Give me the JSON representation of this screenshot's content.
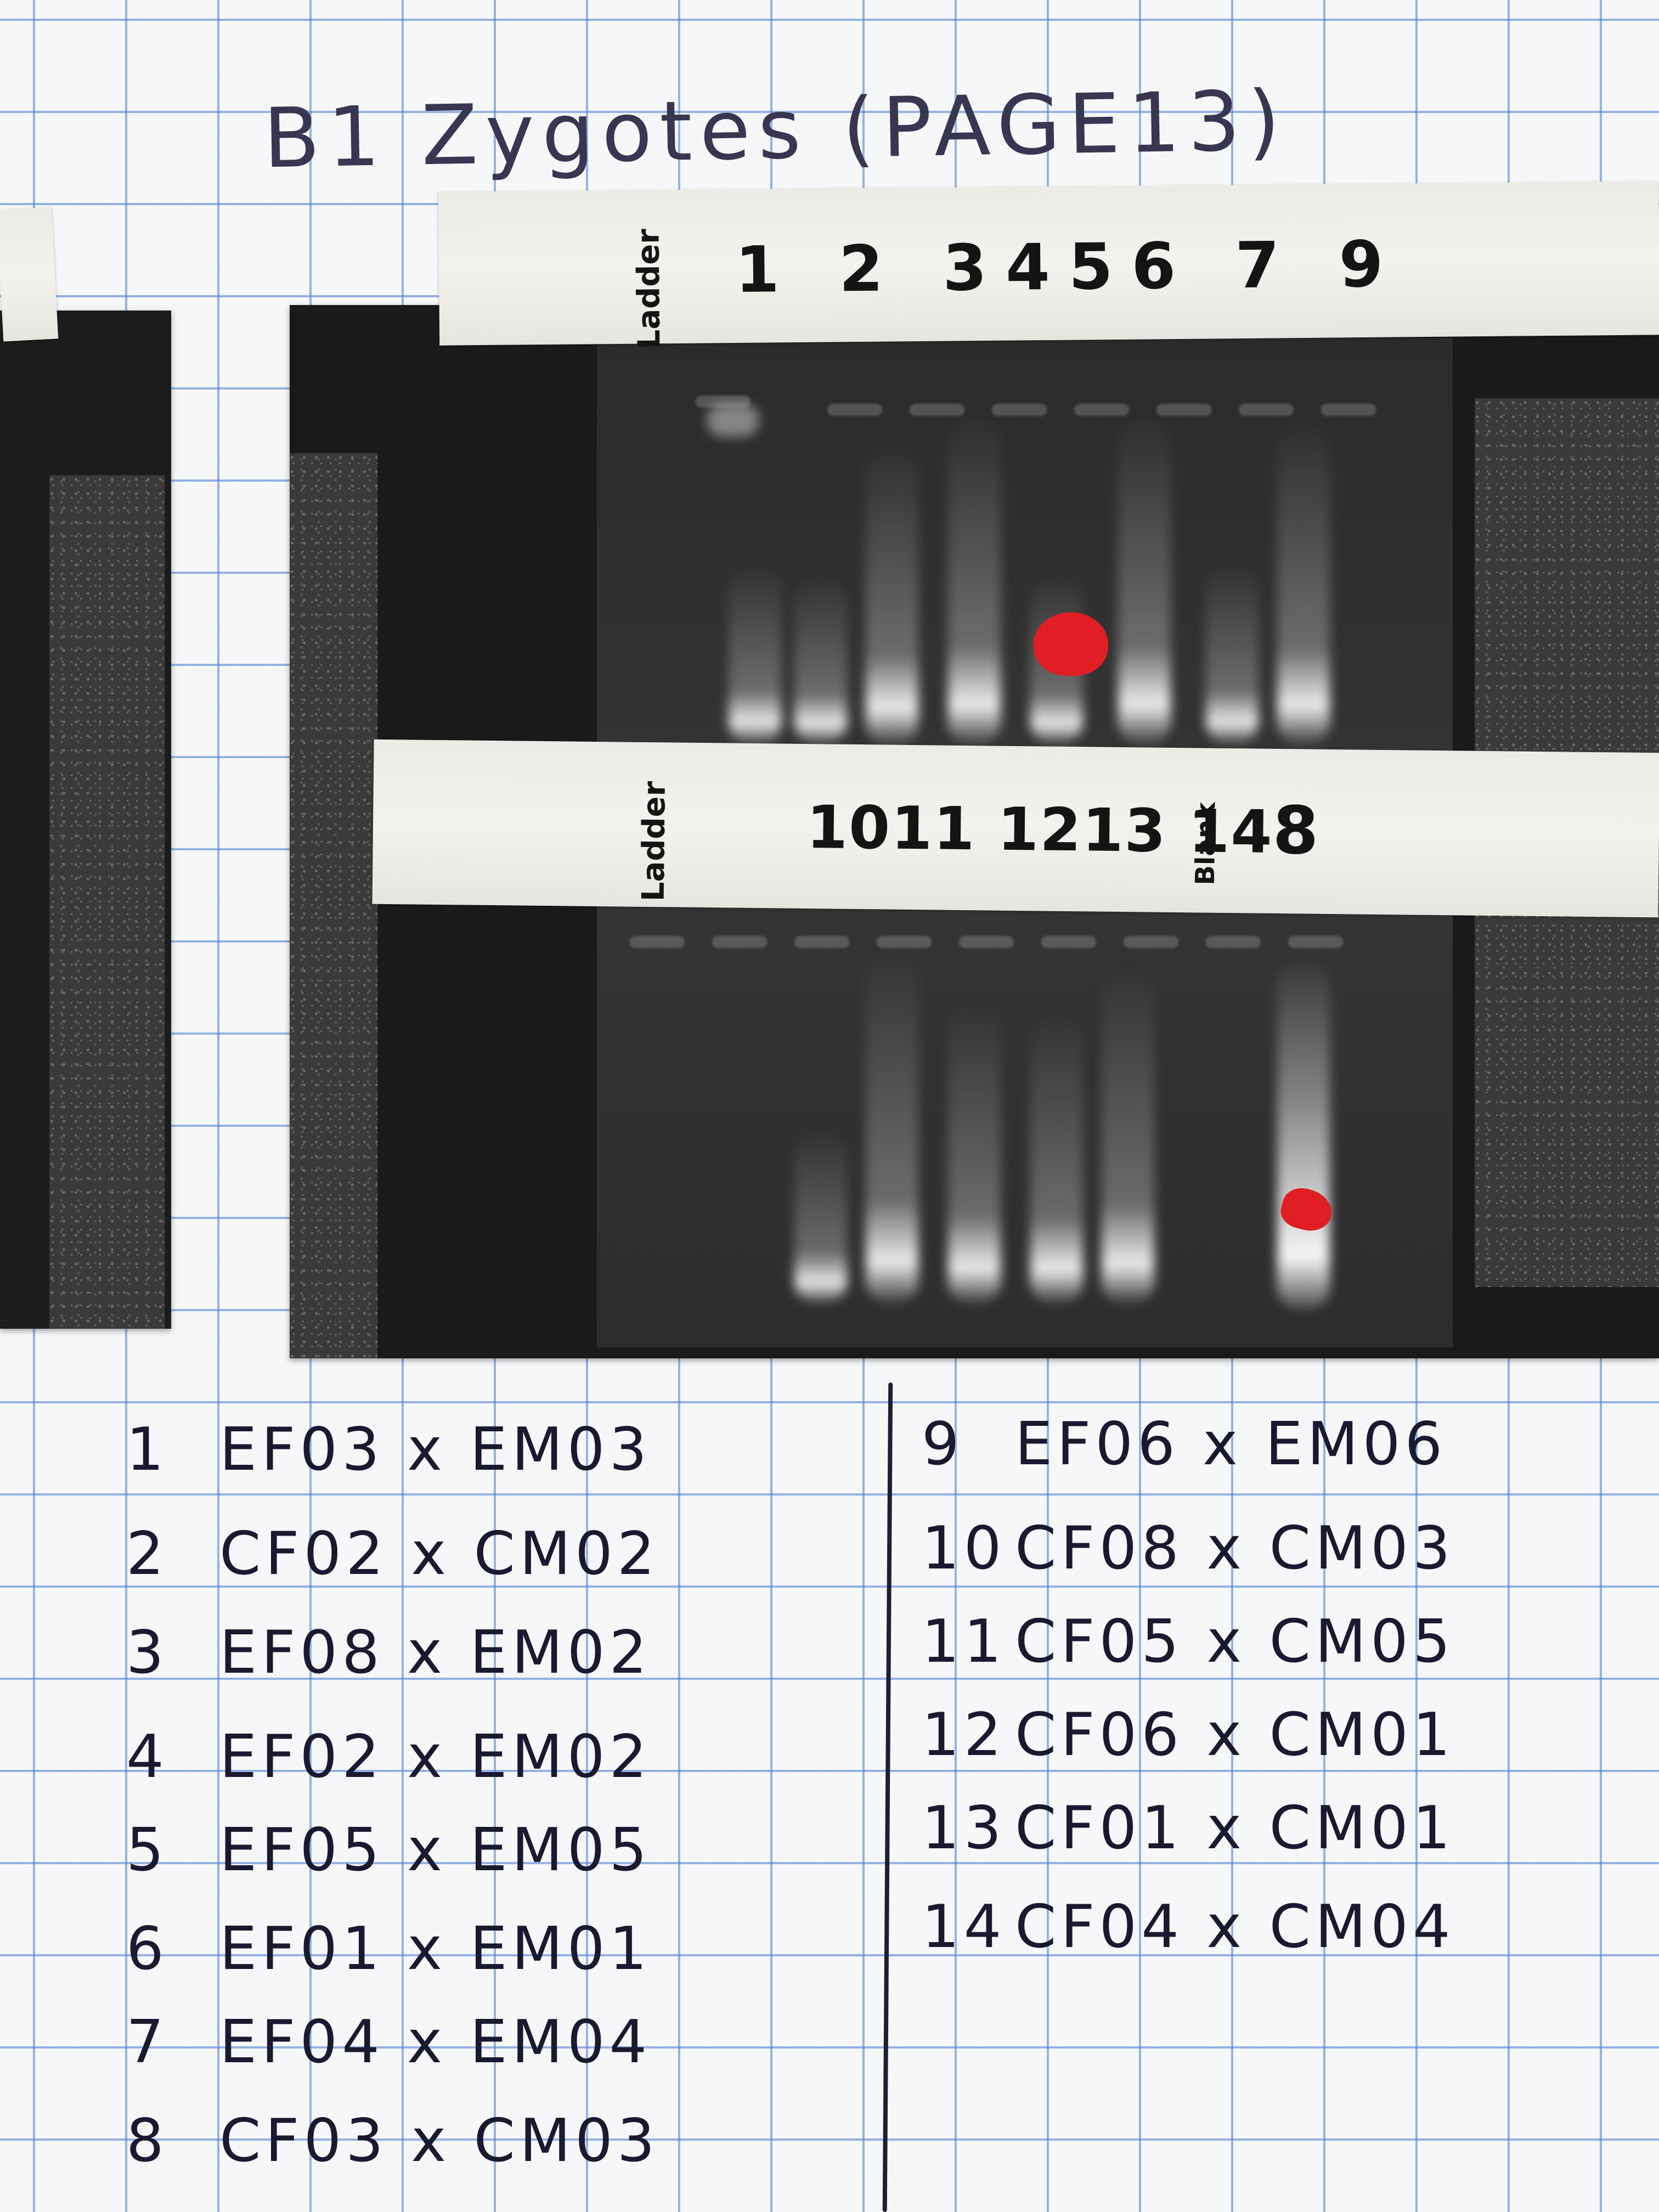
{
  "title": "B1 Zygotes (PAGE13)",
  "gel": {
    "top_tape": {
      "ladder_label": "Ladder",
      "lanes": [
        "1",
        "2",
        "3",
        "4",
        "5",
        "6",
        "7",
        "9"
      ]
    },
    "bottom_tape": {
      "ladder_label": "Ladder",
      "lanes": [
        "10",
        "11",
        "12",
        "13",
        "14"
      ],
      "blank_label": "Blank",
      "extra_lane": "8"
    },
    "marker_color": "#e01e24"
  },
  "key_left": [
    {
      "num": "1",
      "text": "EF03 x EM03"
    },
    {
      "num": "2",
      "text": "CF02 x CM02"
    },
    {
      "num": "3",
      "text": "EF08 x EM02"
    },
    {
      "num": "4",
      "text": "EF02 x EM02"
    },
    {
      "num": "5",
      "text": "EF05 x EM05"
    },
    {
      "num": "6",
      "text": "EF01 x EM01"
    },
    {
      "num": "7",
      "text": "EF04 x EM04"
    },
    {
      "num": "8",
      "text": "CF03 x CM03"
    }
  ],
  "key_right": [
    {
      "num": "9",
      "text": "EF06 x EM06"
    },
    {
      "num": "10",
      "text": "CF08 x CM03"
    },
    {
      "num": "11",
      "text": "CF05 x CM05"
    },
    {
      "num": "12",
      "text": "CF06 x CM01"
    },
    {
      "num": "13",
      "text": "CF01 x CM01"
    },
    {
      "num": "14",
      "text": "CF04 x CM04"
    }
  ]
}
